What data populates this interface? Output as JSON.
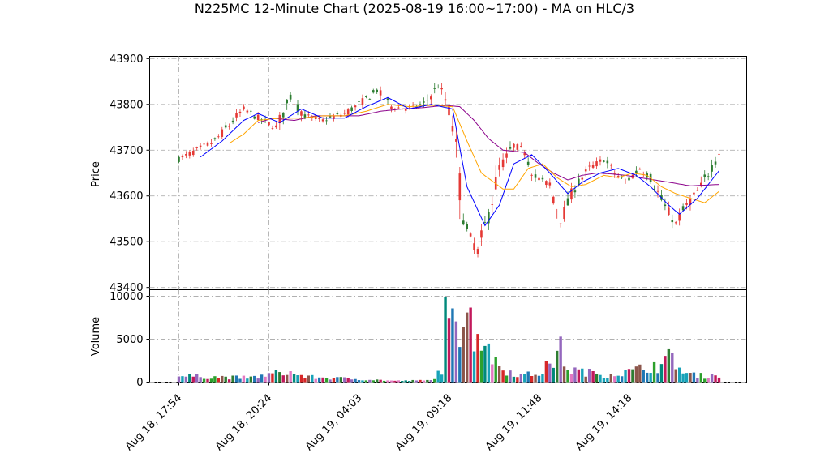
{
  "chart_data": {
    "type": "candlestick",
    "title": "N225MC 12-Minute Chart (2025-08-19 16:00~17:00) - MA on HLC/3",
    "price_panel": {
      "ylabel": "Price",
      "ylim": [
        43395,
        43905
      ],
      "yticks": [
        43400,
        43500,
        43600,
        43700,
        43800,
        43900
      ],
      "grid": true
    },
    "volume_panel": {
      "ylabel": "Volume",
      "ylim": [
        0,
        10000
      ],
      "yticks": [
        0,
        5000,
        10000
      ],
      "grid": true
    },
    "x_tick_labels": [
      "Aug 18, 17:54",
      "Aug 18, 20:24",
      "Aug 19, 04:03",
      "Aug 19, 09:18",
      "Aug 19, 11:48",
      "Aug 19, 14:18"
    ],
    "x_tick_bar_index": [
      0,
      25,
      50,
      75,
      100,
      125
    ],
    "bar_count": 151,
    "colors": {
      "up": "#2e7d32",
      "down": "#e53935",
      "ma_fast": "#0000ff",
      "ma_mid": "#ffa500",
      "ma_slow": "#8b008b"
    },
    "price_path_keypoints": [
      [
        0,
        43680
      ],
      [
        10,
        43720
      ],
      [
        18,
        43790
      ],
      [
        22,
        43770
      ],
      [
        27,
        43750
      ],
      [
        31,
        43815
      ],
      [
        35,
        43775
      ],
      [
        40,
        43765
      ],
      [
        46,
        43780
      ],
      [
        50,
        43800
      ],
      [
        55,
        43830
      ],
      [
        59,
        43795
      ],
      [
        63,
        43790
      ],
      [
        68,
        43800
      ],
      [
        72,
        43840
      ],
      [
        74,
        43810
      ],
      [
        76,
        43760
      ],
      [
        78,
        43620
      ],
      [
        80,
        43520
      ],
      [
        83,
        43480
      ],
      [
        86,
        43560
      ],
      [
        89,
        43660
      ],
      [
        93,
        43710
      ],
      [
        96,
        43700
      ],
      [
        99,
        43640
      ],
      [
        103,
        43625
      ],
      [
        106,
        43545
      ],
      [
        110,
        43620
      ],
      [
        114,
        43660
      ],
      [
        118,
        43680
      ],
      [
        121,
        43650
      ],
      [
        124,
        43630
      ],
      [
        128,
        43660
      ],
      [
        131,
        43640
      ],
      [
        135,
        43575
      ],
      [
        138,
        43540
      ],
      [
        141,
        43580
      ],
      [
        145,
        43620
      ],
      [
        150,
        43695
      ]
    ],
    "ma_fast_keypoints": [
      [
        6,
        43685
      ],
      [
        12,
        43720
      ],
      [
        18,
        43765
      ],
      [
        22,
        43780
      ],
      [
        28,
        43760
      ],
      [
        34,
        43790
      ],
      [
        40,
        43770
      ],
      [
        46,
        43770
      ],
      [
        52,
        43795
      ],
      [
        58,
        43815
      ],
      [
        64,
        43790
      ],
      [
        70,
        43800
      ],
      [
        76,
        43790
      ],
      [
        80,
        43620
      ],
      [
        85,
        43535
      ],
      [
        89,
        43580
      ],
      [
        93,
        43670
      ],
      [
        98,
        43690
      ],
      [
        103,
        43650
      ],
      [
        108,
        43605
      ],
      [
        112,
        43630
      ],
      [
        117,
        43650
      ],
      [
        122,
        43660
      ],
      [
        127,
        43645
      ],
      [
        131,
        43620
      ],
      [
        136,
        43580
      ],
      [
        139,
        43560
      ],
      [
        144,
        43595
      ],
      [
        150,
        43655
      ]
    ],
    "ma_mid_keypoints": [
      [
        14,
        43715
      ],
      [
        18,
        43735
      ],
      [
        22,
        43765
      ],
      [
        28,
        43770
      ],
      [
        34,
        43770
      ],
      [
        40,
        43775
      ],
      [
        46,
        43775
      ],
      [
        52,
        43785
      ],
      [
        58,
        43800
      ],
      [
        64,
        43795
      ],
      [
        70,
        43798
      ],
      [
        76,
        43795
      ],
      [
        80,
        43720
      ],
      [
        84,
        43650
      ],
      [
        90,
        43615
      ],
      [
        93,
        43615
      ],
      [
        97,
        43660
      ],
      [
        101,
        43670
      ],
      [
        105,
        43640
      ],
      [
        109,
        43620
      ],
      [
        113,
        43625
      ],
      [
        118,
        43645
      ],
      [
        122,
        43640
      ],
      [
        126,
        43650
      ],
      [
        130,
        43645
      ],
      [
        134,
        43620
      ],
      [
        138,
        43605
      ],
      [
        142,
        43595
      ],
      [
        146,
        43585
      ],
      [
        150,
        43610
      ]
    ],
    "ma_slow_keypoints": [
      [
        22,
        43760
      ],
      [
        26,
        43770
      ],
      [
        32,
        43765
      ],
      [
        38,
        43775
      ],
      [
        44,
        43775
      ],
      [
        50,
        43775
      ],
      [
        56,
        43785
      ],
      [
        62,
        43790
      ],
      [
        68,
        43793
      ],
      [
        74,
        43798
      ],
      [
        78,
        43795
      ],
      [
        82,
        43765
      ],
      [
        86,
        43725
      ],
      [
        90,
        43700
      ],
      [
        96,
        43695
      ],
      [
        100,
        43670
      ],
      [
        104,
        43650
      ],
      [
        108,
        43635
      ],
      [
        112,
        43645
      ],
      [
        116,
        43650
      ],
      [
        120,
        43648
      ],
      [
        124,
        43645
      ],
      [
        128,
        43640
      ],
      [
        132,
        43635
      ],
      [
        136,
        43630
      ],
      [
        142,
        43622
      ],
      [
        150,
        43625
      ]
    ],
    "volume_keypoints": [
      [
        0,
        700
      ],
      [
        20,
        500
      ],
      [
        30,
        1200
      ],
      [
        35,
        600
      ],
      [
        50,
        350
      ],
      [
        60,
        150
      ],
      [
        70,
        200
      ],
      [
        73,
        1500
      ],
      [
        74,
        8000
      ],
      [
        76,
        5000
      ],
      [
        78,
        6500
      ],
      [
        80,
        9000
      ],
      [
        82,
        6000
      ],
      [
        84,
        4000
      ],
      [
        87,
        3000
      ],
      [
        90,
        1500
      ],
      [
        95,
        800
      ],
      [
        100,
        1000
      ],
      [
        104,
        2500
      ],
      [
        106,
        3800
      ],
      [
        108,
        1500
      ],
      [
        112,
        1200
      ],
      [
        118,
        900
      ],
      [
        124,
        1100
      ],
      [
        128,
        1500
      ],
      [
        132,
        2000
      ],
      [
        134,
        1800
      ],
      [
        137,
        3200
      ],
      [
        140,
        1000
      ],
      [
        146,
        700
      ],
      [
        150,
        900
      ]
    ]
  }
}
